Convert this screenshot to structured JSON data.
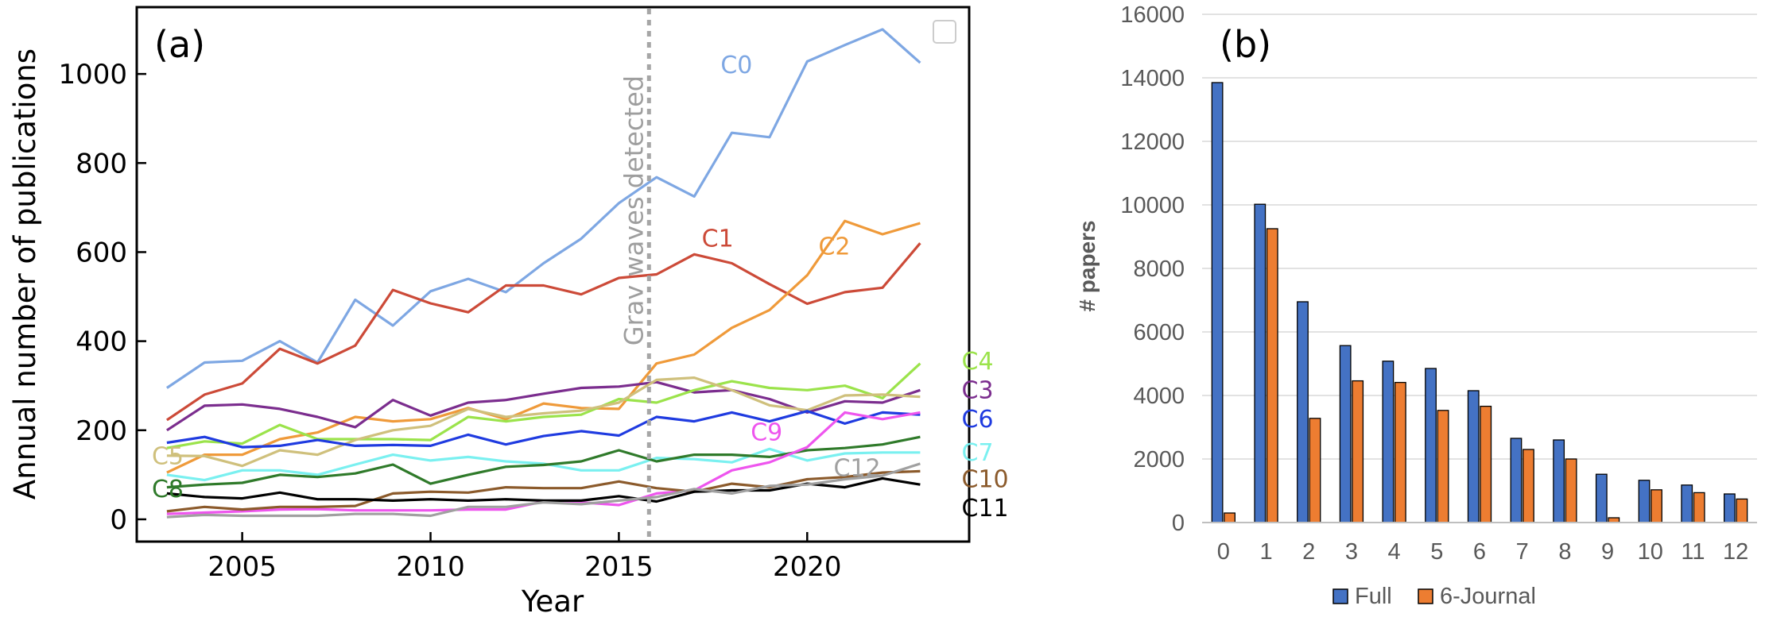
{
  "chart_data": [
    {
      "type": "line",
      "panel_label": "(a)",
      "xlabel": "Year",
      "ylabel": "Annual number of publications",
      "xlim": [
        2002.2,
        2024.3
      ],
      "ylim": [
        -50,
        1150
      ],
      "xticks": [
        2005,
        2010,
        2015,
        2020
      ],
      "yticks": [
        0,
        200,
        400,
        600,
        800,
        1000
      ],
      "vline": {
        "x": 2015.8,
        "label": "Grav waves detected",
        "color": "#a6a6a6"
      },
      "legend_box": "top-right, empty",
      "x": [
        2003,
        2004,
        2005,
        2006,
        2007,
        2008,
        2009,
        2010,
        2011,
        2012,
        2013,
        2014,
        2015,
        2016,
        2017,
        2018,
        2019,
        2020,
        2021,
        2022,
        2023
      ],
      "series": [
        {
          "name": "C0",
          "color": "#7ea7e3",
          "label_x": 2017.7,
          "label_y": 1020,
          "values": [
            295,
            352,
            356,
            400,
            352,
            493,
            435,
            512,
            540,
            510,
            575,
            630,
            710,
            768,
            725,
            868,
            858,
            1028,
            1065,
            1100,
            1025
          ]
        },
        {
          "name": "C1",
          "color": "#cc4a38",
          "label_x": 2017.2,
          "label_y": 630,
          "values": [
            223,
            280,
            305,
            383,
            350,
            390,
            515,
            485,
            465,
            525,
            525,
            505,
            542,
            550,
            595,
            575,
            528,
            484,
            510,
            520,
            620
          ]
        },
        {
          "name": "C2",
          "color": "#ef9a3a",
          "label_x": 2020.3,
          "label_y": 612,
          "values": [
            105,
            145,
            145,
            180,
            195,
            230,
            220,
            225,
            250,
            225,
            260,
            250,
            248,
            350,
            370,
            430,
            470,
            548,
            670,
            640,
            665
          ]
        },
        {
          "name": "C3",
          "color": "#7b2d8e",
          "label_x": 2024.1,
          "label_y": 290,
          "values": [
            200,
            255,
            258,
            248,
            230,
            207,
            268,
            233,
            262,
            268,
            282,
            295,
            298,
            308,
            285,
            290,
            270,
            240,
            265,
            262,
            290
          ]
        },
        {
          "name": "C4",
          "color": "#9be34b",
          "label_x": 2024.1,
          "label_y": 355,
          "values": [
            160,
            175,
            170,
            212,
            180,
            180,
            180,
            178,
            230,
            220,
            230,
            235,
            270,
            262,
            290,
            310,
            295,
            290,
            300,
            272,
            350
          ]
        },
        {
          "name": "C5",
          "color": "#cfc07c",
          "label_x": 2002.6,
          "label_y": 142,
          "values": [
            143,
            142,
            120,
            155,
            145,
            178,
            200,
            210,
            248,
            230,
            238,
            244,
            262,
            313,
            318,
            290,
            256,
            245,
            278,
            280,
            275
          ]
        },
        {
          "name": "C6",
          "color": "#1f3be0",
          "label_x": 2024.1,
          "label_y": 225,
          "values": [
            172,
            185,
            162,
            165,
            178,
            165,
            167,
            165,
            190,
            168,
            187,
            198,
            188,
            230,
            220,
            240,
            220,
            243,
            215,
            240,
            235
          ]
        },
        {
          "name": "C7",
          "color": "#7af0f0",
          "label_x": 2024.1,
          "label_y": 150,
          "values": [
            100,
            88,
            110,
            110,
            100,
            123,
            145,
            132,
            140,
            130,
            125,
            110,
            110,
            138,
            135,
            128,
            158,
            132,
            148,
            150,
            150
          ]
        },
        {
          "name": "C8",
          "color": "#2f7a2a",
          "label_x": 2002.6,
          "label_y": 68,
          "values": [
            72,
            78,
            82,
            100,
            95,
            103,
            123,
            80,
            100,
            118,
            122,
            130,
            155,
            130,
            145,
            145,
            140,
            155,
            160,
            168,
            185
          ]
        },
        {
          "name": "C9",
          "color": "#ee55ee",
          "label_x": 2018.5,
          "label_y": 195,
          "values": [
            12,
            15,
            18,
            22,
            23,
            20,
            20,
            20,
            22,
            22,
            40,
            38,
            32,
            58,
            65,
            110,
            128,
            162,
            240,
            225,
            240
          ]
        },
        {
          "name": "C10",
          "color": "#8b5a2b",
          "label_x": 2024.1,
          "label_y": 90,
          "values": [
            18,
            28,
            22,
            28,
            28,
            30,
            58,
            62,
            60,
            72,
            70,
            70,
            85,
            70,
            62,
            80,
            72,
            90,
            95,
            105,
            108
          ]
        },
        {
          "name": "C11",
          "color": "#000000",
          "label_x": 2024.1,
          "label_y": 25,
          "values": [
            58,
            50,
            47,
            60,
            45,
            45,
            42,
            45,
            42,
            45,
            42,
            42,
            52,
            40,
            62,
            65,
            65,
            80,
            72,
            92,
            78
          ]
        },
        {
          "name": "C12",
          "color": "#a0a0a0",
          "label_x": 2020.7,
          "label_y": 115,
          "values": [
            5,
            10,
            8,
            8,
            8,
            12,
            12,
            8,
            28,
            28,
            38,
            34,
            42,
            50,
            68,
            58,
            75,
            78,
            90,
            98,
            125
          ]
        }
      ]
    },
    {
      "type": "bar",
      "panel_label": "(b)",
      "xlabel": "",
      "ylabel": "# papers",
      "ylim": [
        0,
        16000
      ],
      "yticks": [
        0,
        2000,
        4000,
        6000,
        8000,
        10000,
        12000,
        14000,
        16000
      ],
      "grid": true,
      "legend_position": "bottom",
      "categories": [
        "0",
        "1",
        "2",
        "3",
        "4",
        "5",
        "6",
        "7",
        "8",
        "9",
        "10",
        "11",
        "12"
      ],
      "series": [
        {
          "name": "Full",
          "color": "#4472c4",
          "values": [
            13850,
            10020,
            6950,
            5570,
            5080,
            4850,
            4150,
            2650,
            2600,
            1520,
            1330,
            1180,
            900
          ]
        },
        {
          "name": "6-Journal",
          "color": "#ed7d31",
          "values": [
            300,
            9250,
            3280,
            4460,
            4410,
            3530,
            3660,
            2300,
            2000,
            150,
            1030,
            940,
            740
          ]
        }
      ]
    }
  ]
}
